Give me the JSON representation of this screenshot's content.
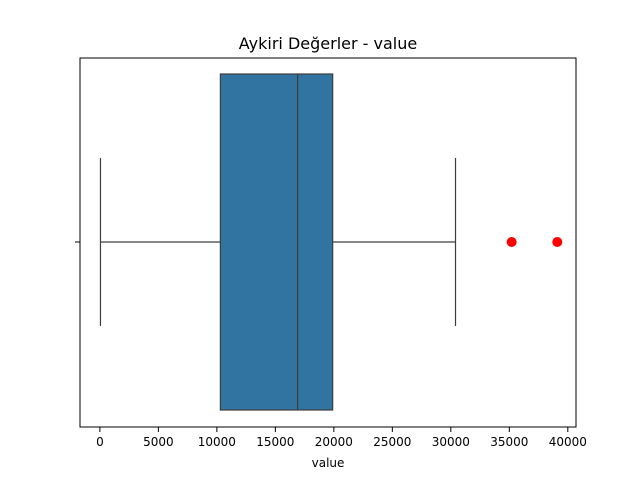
{
  "chart_data": {
    "type": "box",
    "title": "Aykiri Değerler - value",
    "xlabel": "value",
    "ylabel": "",
    "xlim": [
      -1700,
      40700
    ],
    "xticks": [
      0,
      5000,
      10000,
      15000,
      20000,
      25000,
      30000,
      35000,
      40000
    ],
    "xtick_labels": [
      "0",
      "5000",
      "10000",
      "15000",
      "20000",
      "25000",
      "30000",
      "35000",
      "40000"
    ],
    "box": {
      "whisker_low": 50,
      "q1": 10300,
      "median": 16900,
      "q3": 19900,
      "whisker_high": 30400
    },
    "outliers": [
      35200,
      39100
    ],
    "colors": {
      "box_fill": "#3274a1",
      "lines": "#3d3d3d",
      "outlier": "#ff0000"
    },
    "grid": false
  }
}
